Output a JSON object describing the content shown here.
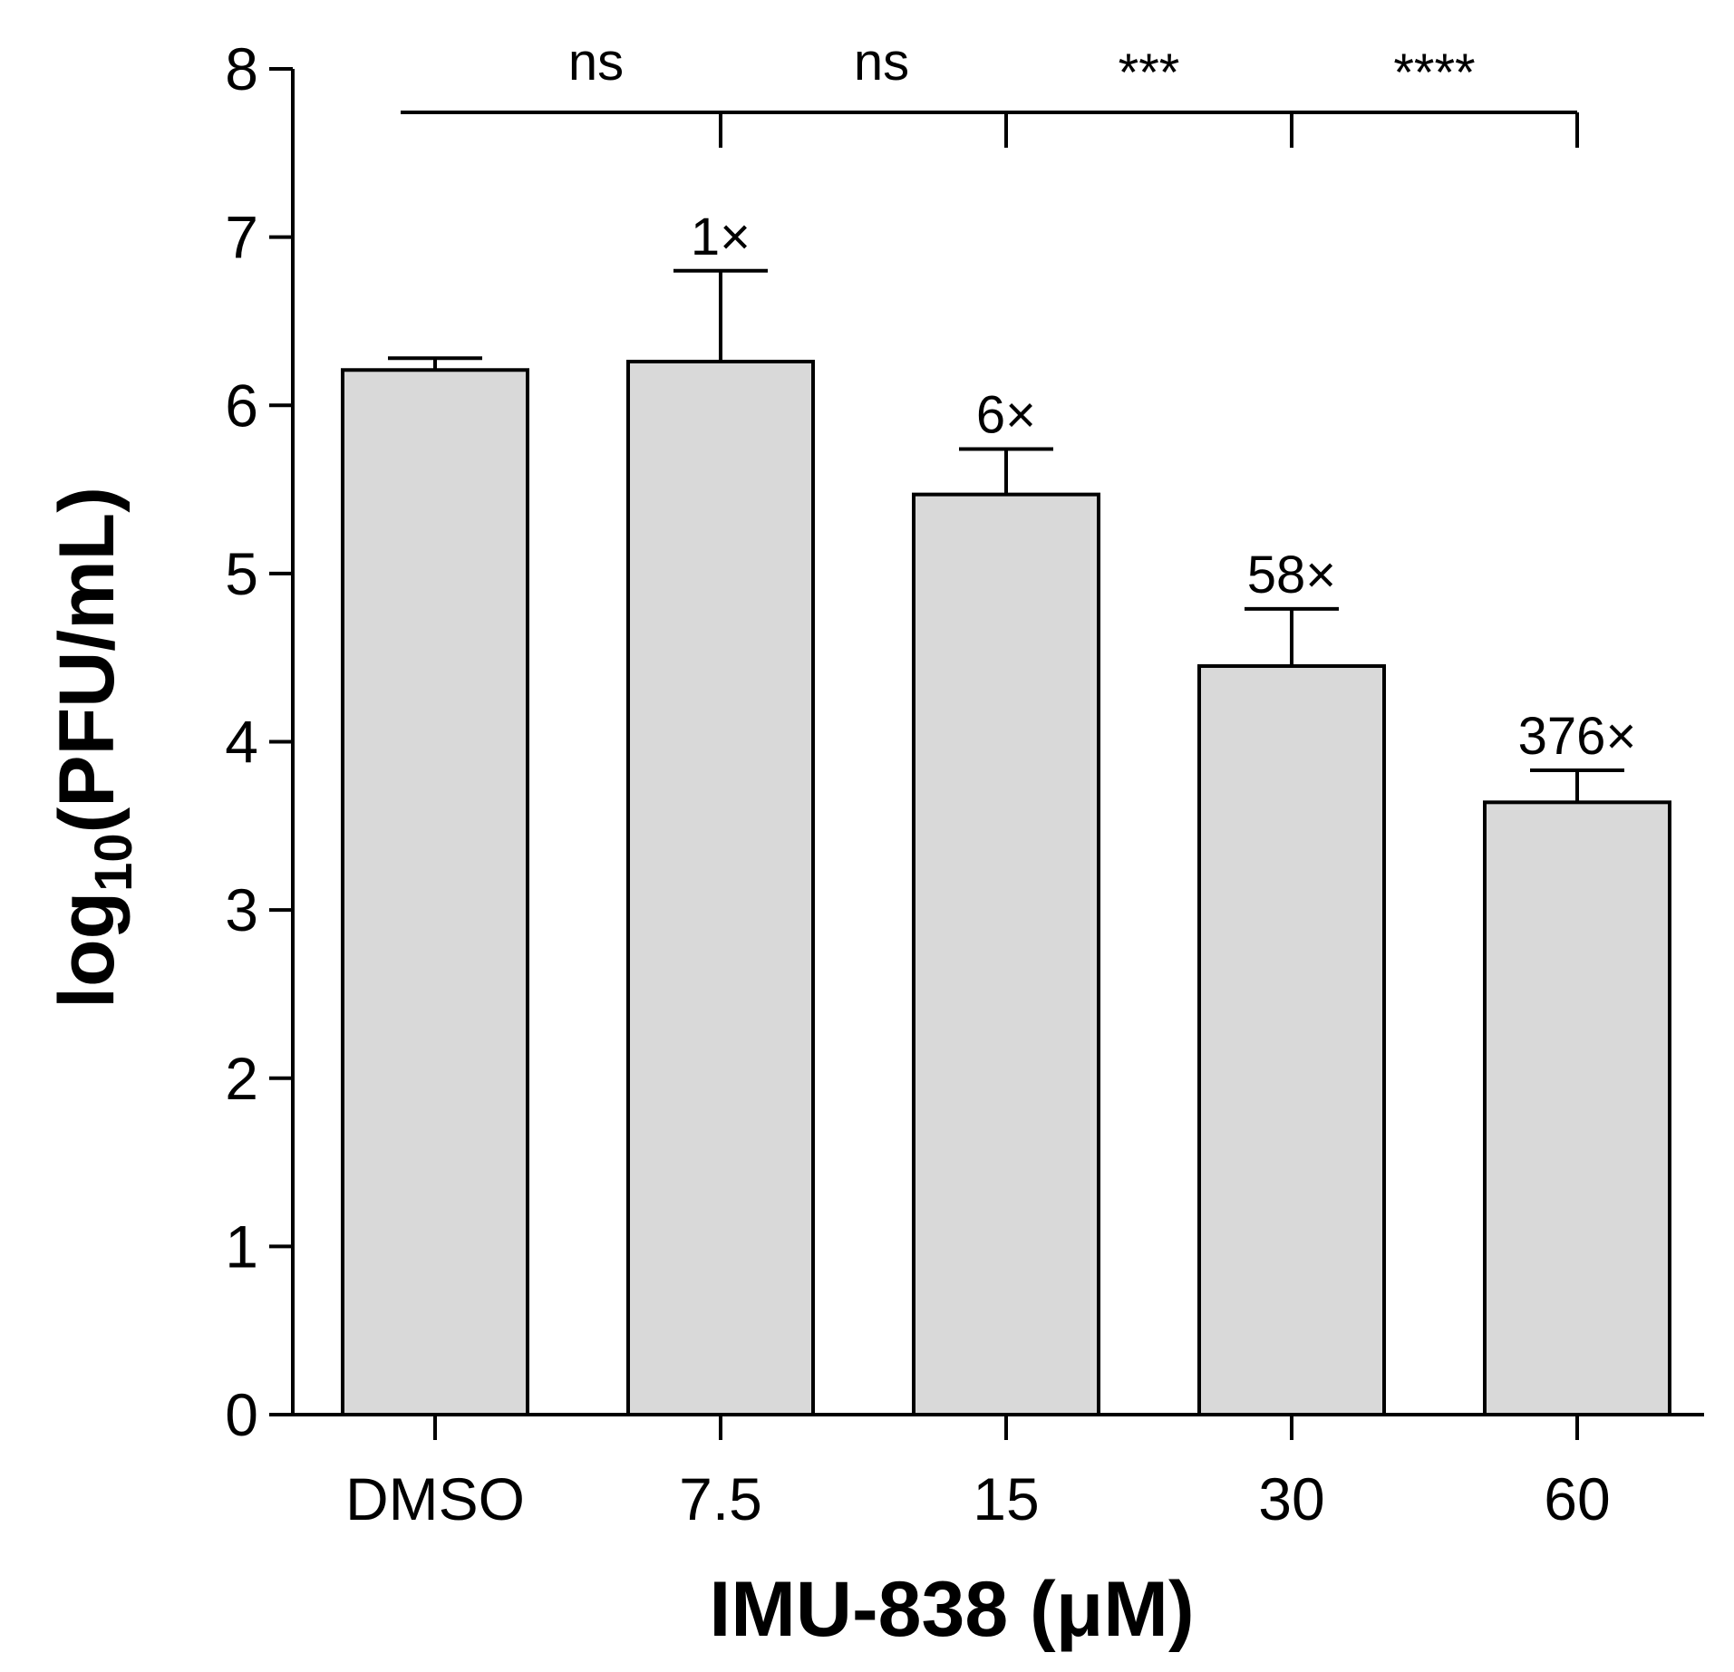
{
  "chart_data": {
    "type": "bar",
    "categories": [
      "DMSO",
      "7.5",
      "15",
      "30",
      "60"
    ],
    "values": [
      6.21,
      6.26,
      5.47,
      4.45,
      3.64
    ],
    "errors": [
      0.07,
      0.54,
      0.27,
      0.34,
      0.19
    ],
    "data_labels": [
      "",
      "1×",
      "6×",
      "58×",
      "376×"
    ],
    "xlabel": "IMU-838 (μM)",
    "ylabel": {
      "main": "log",
      "sub": "10",
      "rest": "(PFU/mL)"
    },
    "ylim": [
      0,
      8
    ],
    "yticks": [
      0,
      1,
      2,
      3,
      4,
      5,
      6,
      7,
      8
    ],
    "grid": false,
    "significance": [
      {
        "label": "ns",
        "from": "DMSO",
        "to": "7.5"
      },
      {
        "label": "ns",
        "from": "DMSO",
        "to": "15"
      },
      {
        "label": "***",
        "from": "DMSO",
        "to": "30"
      },
      {
        "label": "****",
        "from": "DMSO",
        "to": "60"
      }
    ],
    "colors": {
      "bar_fill": "#d9d9d9",
      "bar_stroke": "#000000",
      "axis": "#000000"
    }
  }
}
